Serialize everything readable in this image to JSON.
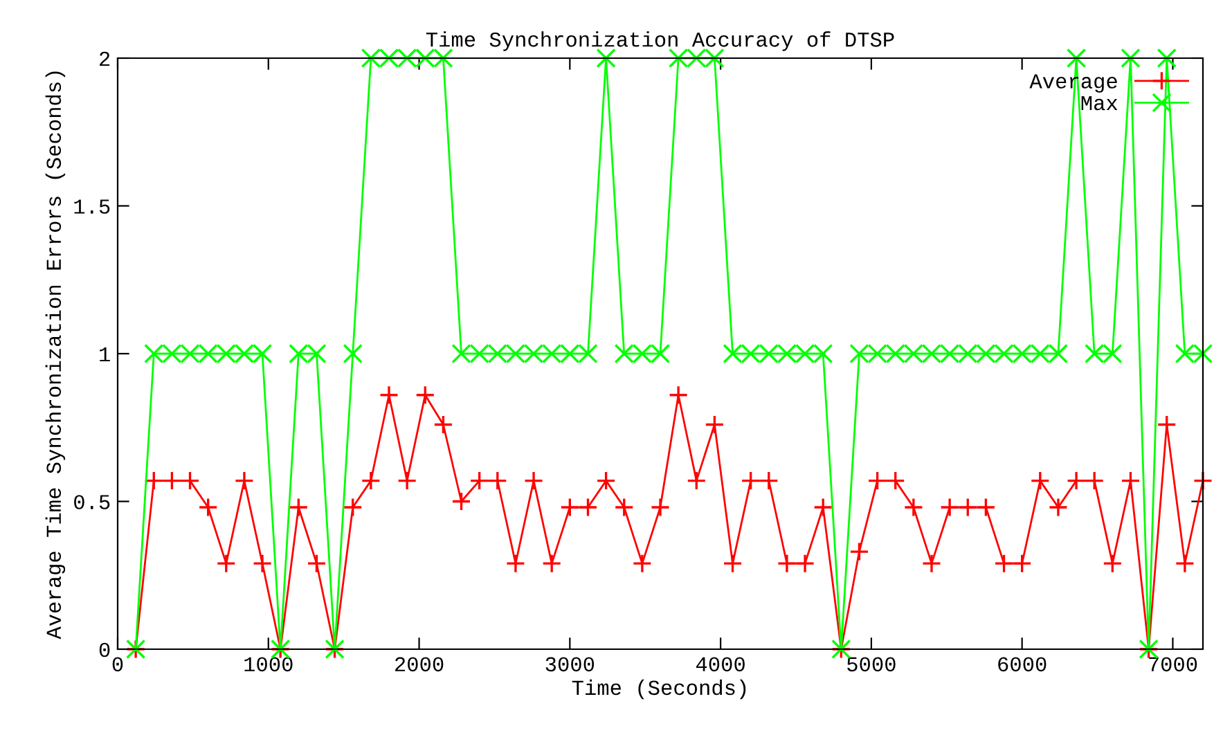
{
  "chart_data": {
    "type": "line",
    "title": "Time Synchronization Accuracy of DTSP",
    "xlabel": "Time (Seconds)",
    "ylabel": "Average Time Synchronization Errors (Seconds)",
    "x": [
      120,
      240,
      360,
      480,
      600,
      720,
      840,
      960,
      1080,
      1200,
      1320,
      1440,
      1560,
      1680,
      1800,
      1920,
      2040,
      2160,
      2280,
      2400,
      2520,
      2640,
      2760,
      2880,
      3000,
      3120,
      3240,
      3360,
      3480,
      3600,
      3720,
      3840,
      3960,
      4080,
      4200,
      4320,
      4440,
      4560,
      4680,
      4800,
      4920,
      5040,
      5160,
      5280,
      5400,
      5520,
      5640,
      5760,
      5880,
      6000,
      6120,
      6240,
      6360,
      6480,
      6600,
      6720,
      6840,
      6960,
      7080,
      7200
    ],
    "series": [
      {
        "name": "Average",
        "color": "#ff0000",
        "marker": "plus",
        "values": [
          0,
          0.57,
          0.57,
          0.57,
          0.48,
          0.29,
          0.57,
          0.29,
          0,
          0.48,
          0.29,
          0,
          0.48,
          0.57,
          0.86,
          0.57,
          0.86,
          0.76,
          0.5,
          0.57,
          0.57,
          0.29,
          0.57,
          0.29,
          0.48,
          0.48,
          0.57,
          0.48,
          0.29,
          0.48,
          0.86,
          0.57,
          0.76,
          0.29,
          0.57,
          0.57,
          0.29,
          0.29,
          0.48,
          0,
          0.33,
          0.57,
          0.57,
          0.48,
          0.29,
          0.48,
          0.48,
          0.48,
          0.29,
          0.29,
          0.57,
          0.48,
          0.57,
          0.57,
          0.29,
          0.57,
          0,
          0.76,
          0.29,
          0.57
        ]
      },
      {
        "name": "Max",
        "color": "#00ff00",
        "marker": "cross",
        "values": [
          0,
          1,
          1,
          1,
          1,
          1,
          1,
          1,
          0,
          1,
          1,
          0,
          1,
          2,
          2,
          2,
          2,
          2,
          1,
          1,
          1,
          1,
          1,
          1,
          1,
          1,
          2,
          1,
          1,
          1,
          2,
          2,
          2,
          1,
          1,
          1,
          1,
          1,
          1,
          0,
          1,
          1,
          1,
          1,
          1,
          1,
          1,
          1,
          1,
          1,
          1,
          1,
          2,
          1,
          1,
          2,
          0,
          2,
          1,
          1
        ]
      }
    ],
    "xlim": [
      0,
      7200
    ],
    "ylim": [
      0,
      2
    ],
    "xticks": [
      0,
      1000,
      2000,
      3000,
      4000,
      5000,
      6000,
      7000
    ],
    "yticks": [
      0,
      0.5,
      1,
      1.5,
      2
    ],
    "legend": "top right",
    "grid": false,
    "line_style": "solid"
  }
}
